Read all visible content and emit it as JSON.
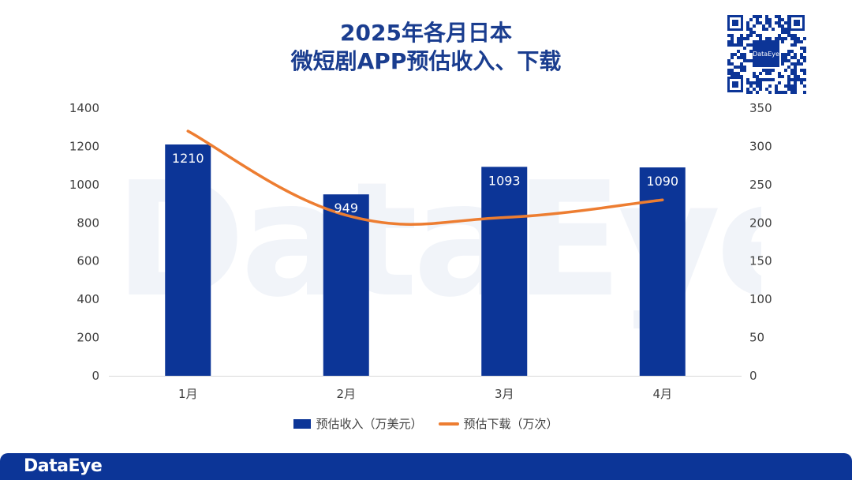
{
  "title": {
    "line1": "2025年各月日本",
    "line2": "微短剧APP预估收入、下载"
  },
  "watermark_text": "DataEye",
  "footer": {
    "brand": "DataEye"
  },
  "qr_label": "DataEye",
  "colors": {
    "bar": "#0c3597",
    "line": "#ed7d31",
    "title": "#1a3d8f",
    "footer": "#0c3597"
  },
  "chart_data": {
    "type": "bar",
    "categories": [
      "1月",
      "2月",
      "3月",
      "4月"
    ],
    "series": [
      {
        "name": "预估收入（万美元）",
        "type": "bar",
        "axis": "left",
        "values": [
          1210,
          949,
          1093,
          1090
        ],
        "data_labels": [
          "1210",
          "949",
          "1093",
          "1090"
        ]
      },
      {
        "name": "预估下载（万次）",
        "type": "line",
        "axis": "right",
        "values": [
          320,
          210,
          207,
          230
        ]
      }
    ],
    "y_left": {
      "min": 0,
      "max": 1400,
      "ticks": [
        "0",
        "200",
        "400",
        "600",
        "800",
        "1000",
        "1200",
        "1400"
      ]
    },
    "y_right": {
      "min": 0,
      "max": 350,
      "ticks": [
        "0",
        "50",
        "100",
        "150",
        "200",
        "250",
        "300",
        "350"
      ]
    },
    "grid": false,
    "legend": "bottom"
  }
}
